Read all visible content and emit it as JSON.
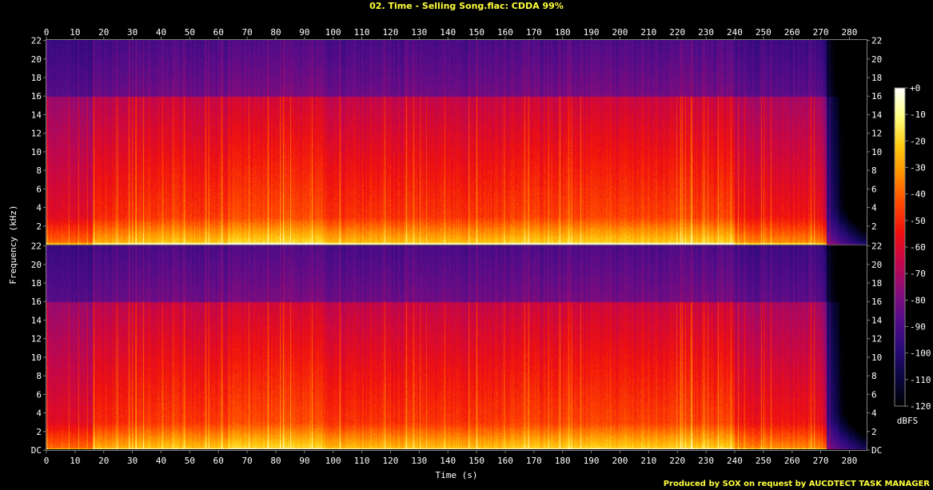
{
  "title": "02. Time - Selling Song.flac: CDDA 99%",
  "credit": "Produced by SOX on request by AUCDTECT TASK MANAGER",
  "chart_data": {
    "type": "heatmap",
    "subtype": "spectrogram",
    "channels": 2,
    "xlabel": "Time (s)",
    "ylabel": "Frequency (kHz)",
    "xlim": [
      0,
      286
    ],
    "ylim": [
      0,
      22.05
    ],
    "x_ticks": [
      0,
      10,
      20,
      30,
      40,
      50,
      60,
      70,
      80,
      90,
      100,
      110,
      120,
      130,
      140,
      150,
      160,
      170,
      180,
      190,
      200,
      210,
      220,
      230,
      240,
      250,
      260,
      270,
      280
    ],
    "y_ticks": [
      "DC",
      "2",
      "4",
      "6",
      "8",
      "10",
      "12",
      "14",
      "16",
      "18",
      "20",
      "22"
    ],
    "y_tick_values": [
      0,
      2,
      4,
      6,
      8,
      10,
      12,
      14,
      16,
      18,
      20,
      22
    ],
    "colorbar": {
      "label": "dBFS",
      "ticks": [
        "+0",
        "-10",
        "-20",
        "-30",
        "-40",
        "-50",
        "-60",
        "-70",
        "-80",
        "-90",
        "-100",
        "-110",
        "-120"
      ],
      "range": [
        -120,
        0
      ],
      "colors": [
        "#000000",
        "#0a0640",
        "#2a0a7a",
        "#550c8a",
        "#8a0c7a",
        "#c4064a",
        "#f0100e",
        "#ff4800",
        "#ff9000",
        "#ffcc10",
        "#ffff80",
        "#ffffff"
      ]
    },
    "sections": [
      {
        "start": 0,
        "end": 16,
        "level": 0.82
      },
      {
        "start": 16,
        "end": 32,
        "level": 0.94
      },
      {
        "start": 32,
        "end": 63,
        "level": 0.98
      },
      {
        "start": 63,
        "end": 96,
        "level": 1.02
      },
      {
        "start": 96,
        "end": 160,
        "level": 0.97
      },
      {
        "start": 160,
        "end": 240,
        "level": 1.0
      },
      {
        "start": 240,
        "end": 272,
        "level": 0.88
      },
      {
        "start": 272,
        "end": 286,
        "level": 0.45
      }
    ],
    "lowpass_khz": 16,
    "fade_out_start_s": 270
  }
}
